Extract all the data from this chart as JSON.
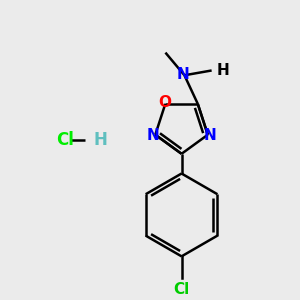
{
  "background_color": "#ebebeb",
  "bond_color": "#000000",
  "nitrogen_color": "#0000ff",
  "oxygen_color": "#ff0000",
  "chlorine_color": "#00cc00",
  "hcl_cl_color": "#00ee00",
  "hcl_h_color": "#5fbfbf",
  "linewidth": 1.8,
  "figsize": [
    3.0,
    3.0
  ],
  "dpi": 100,
  "xlim": [
    0,
    300
  ],
  "ylim": [
    0,
    300
  ]
}
